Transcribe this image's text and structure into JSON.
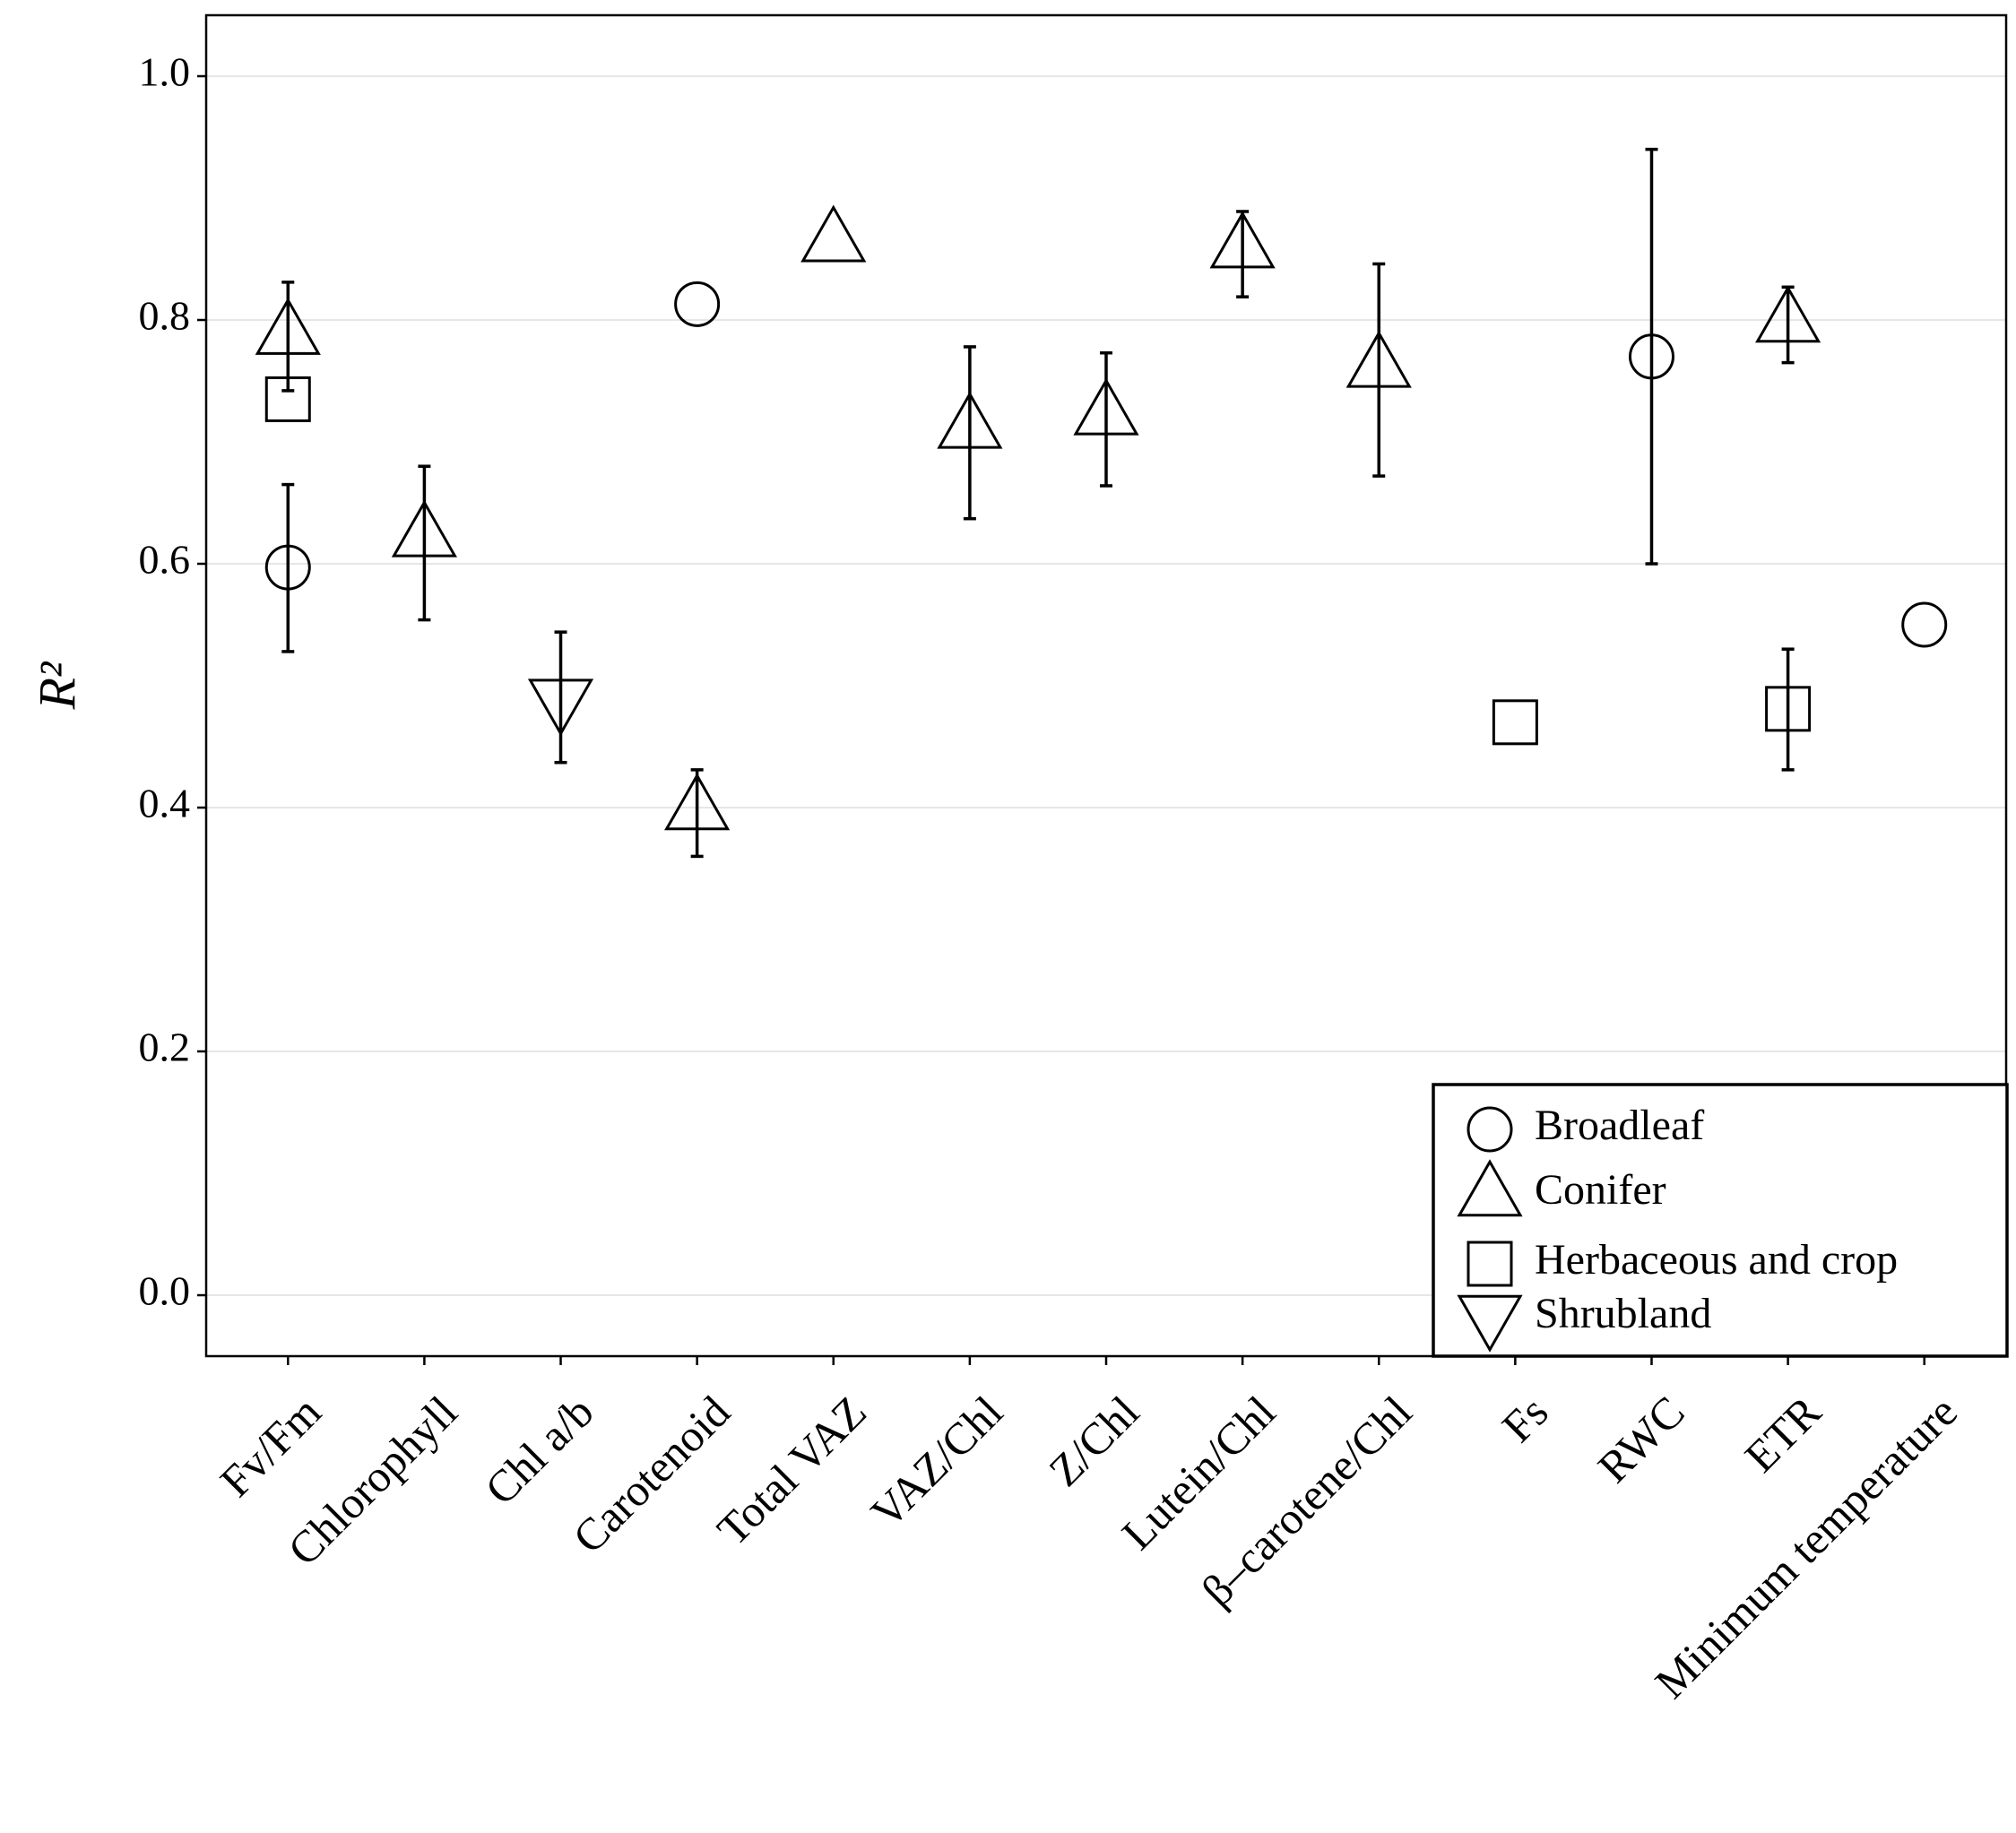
{
  "chart_data": {
    "type": "scatter",
    "y_label": "R²",
    "categories": [
      "Fv/Fm",
      "Chlorophyll",
      "Chl a/b",
      "Carotenoid",
      "Total VAZ",
      "VAZ/Chl",
      "Z/Chl",
      "Lutein/Chl",
      "β–carotene/Chl",
      "Fs",
      "RWC",
      "ETR",
      "Minimum temperature"
    ],
    "series": [
      {
        "name": "Broadleaf",
        "marker": "circle",
        "color": "#000000",
        "values": [
          0.597,
          null,
          null,
          0.813,
          null,
          null,
          null,
          null,
          null,
          null,
          0.77,
          null,
          0.55
        ],
        "lower": [
          0.528,
          null,
          null,
          null,
          null,
          null,
          null,
          null,
          null,
          null,
          0.6,
          null,
          null
        ],
        "upper": [
          0.665,
          null,
          null,
          null,
          null,
          null,
          null,
          null,
          null,
          null,
          0.94,
          null,
          null
        ]
      },
      {
        "name": "Conifer",
        "marker": "triangle-up",
        "color": "#000000",
        "values": [
          0.79,
          0.624,
          null,
          0.4,
          0.866,
          0.713,
          0.724,
          0.861,
          0.763,
          null,
          null,
          0.8,
          null
        ],
        "lower": [
          0.742,
          0.554,
          null,
          0.36,
          null,
          0.637,
          0.664,
          0.819,
          0.672,
          null,
          null,
          0.765,
          null
        ],
        "upper": [
          0.831,
          0.68,
          null,
          0.431,
          null,
          0.778,
          0.773,
          0.889,
          0.846,
          null,
          null,
          0.827,
          null
        ]
      },
      {
        "name": "Herbaceous and crop",
        "marker": "square",
        "color": "#000000",
        "values": [
          0.735,
          null,
          null,
          null,
          null,
          null,
          null,
          null,
          null,
          0.47,
          null,
          0.481,
          null
        ],
        "lower": [
          null,
          null,
          null,
          null,
          null,
          null,
          null,
          null,
          null,
          null,
          null,
          0.431,
          null
        ],
        "upper": [
          null,
          null,
          null,
          null,
          null,
          null,
          null,
          null,
          null,
          null,
          null,
          0.53,
          null
        ]
      },
      {
        "name": "Shrubland",
        "marker": "triangle-down",
        "color": "#000000",
        "values": [
          null,
          null,
          0.487,
          null,
          null,
          null,
          null,
          null,
          null,
          null,
          null,
          null,
          null
        ],
        "lower": [
          null,
          null,
          0.437,
          null,
          null,
          null,
          null,
          null,
          null,
          null,
          null,
          null,
          null
        ],
        "upper": [
          null,
          null,
          0.544,
          null,
          null,
          null,
          null,
          null,
          null,
          null,
          null,
          null,
          null
        ]
      }
    ],
    "ylim": [
      -0.05,
      1.05
    ],
    "yticks": [
      {
        "value": 0,
        "label": "0.0"
      },
      0.2,
      0.4,
      0.6,
      0.8,
      {
        "value": 1,
        "label": "1.0"
      }
    ],
    "grid": true,
    "legend": "bottom-right"
  }
}
